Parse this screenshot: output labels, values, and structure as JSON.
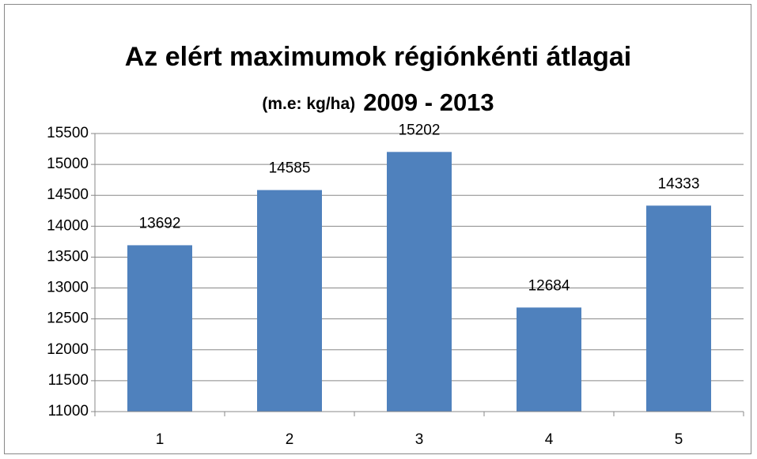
{
  "chart_data": {
    "type": "bar",
    "title": "Az elért maximumok régiónkénti átlagai",
    "subtitle": [
      "(m.e: kg/ha)",
      "2009 - 2013"
    ],
    "categories": [
      "1",
      "2",
      "3",
      "4",
      "5"
    ],
    "values": [
      13692,
      14585,
      15202,
      12684,
      14333
    ],
    "color": "#4f81bd",
    "ylim": [
      11000,
      15500
    ],
    "yticks": [
      11000,
      11500,
      12000,
      12500,
      13000,
      13500,
      14000,
      14500,
      15000,
      15500
    ],
    "grid": true
  }
}
